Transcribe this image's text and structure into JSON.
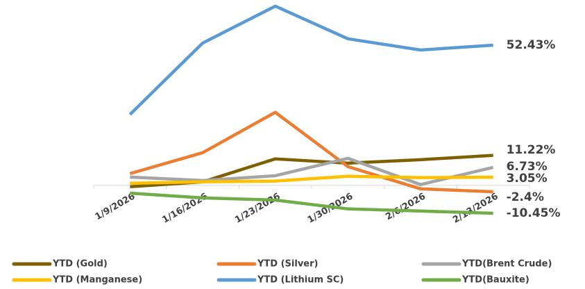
{
  "chart_data": {
    "type": "line",
    "categories": [
      "1/9/2026",
      "1/16/2026",
      "1/23/2026",
      "1/30/2026",
      "2/6/2026",
      "2/13/2026"
    ],
    "ylim": [
      -12,
      68
    ],
    "legend": "bottom",
    "series": [
      {
        "name": "YTD (Gold)",
        "color": "#7f6000",
        "values": [
          -0.5,
          1.3,
          9.9,
          8.3,
          9.6,
          11.22
        ],
        "value_labels": [
          null,
          null,
          null,
          null,
          null,
          "11.22%"
        ]
      },
      {
        "name": "YTD (Silver)",
        "color": "#ed7d31",
        "values": [
          4.4,
          12.2,
          27.3,
          7.0,
          -1.3,
          -2.4
        ],
        "value_labels": [
          null,
          null,
          null,
          null,
          null,
          "-2.4%"
        ]
      },
      {
        "name": "YTD(Brent Crude)",
        "color": "#a5a5a5",
        "values": [
          3.1,
          1.8,
          3.6,
          10.1,
          0.3,
          6.73
        ],
        "value_labels": [
          null,
          null,
          null,
          null,
          null,
          "6.73%"
        ]
      },
      {
        "name": "YTD (Manganese)",
        "color": "#ffc000",
        "values": [
          0.8,
          1.3,
          1.6,
          3.4,
          2.9,
          3.05
        ],
        "value_labels": [
          null,
          null,
          null,
          null,
          null,
          "3.05%"
        ]
      },
      {
        "name": "YTD (Lithium SC)",
        "color": "#5b9bd5",
        "values": [
          26.5,
          53.2,
          67.0,
          54.8,
          50.6,
          52.43
        ],
        "value_labels": [
          null,
          null,
          null,
          null,
          null,
          "52.43%"
        ]
      },
      {
        "name": "YTD(Bauxite)",
        "color": "#70ad47",
        "values": [
          -2.9,
          -4.7,
          -5.5,
          -8.8,
          -9.6,
          -10.45
        ],
        "value_labels": [
          null,
          null,
          null,
          null,
          null,
          "-10.45%"
        ]
      }
    ]
  }
}
